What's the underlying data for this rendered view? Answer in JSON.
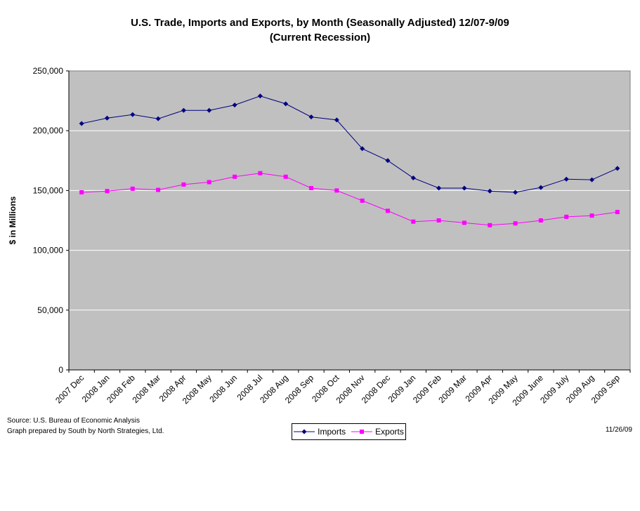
{
  "chart_data": {
    "type": "line",
    "title": "U.S. Trade, Imports and Exports, by Month (Seasonally Adjusted) 12/07-9/09",
    "subtitle": "(Current Recession)",
    "ylabel": "$ in Millions",
    "xlabel": "",
    "ylim": [
      0,
      250000
    ],
    "yticks": [
      0,
      50000,
      100000,
      150000,
      200000,
      250000
    ],
    "ytick_labels": [
      "0",
      "50,000",
      "100,000",
      "150,000",
      "200,000",
      "250,000"
    ],
    "grid": true,
    "legend_position": "bottom-center",
    "categories": [
      "2007 Dec",
      "2008 Jan",
      "2008 Feb",
      "2008 Mar",
      "2008 Apr",
      "2008 May",
      "2008 Jun",
      "2008 Jul",
      "2008 Aug",
      "2008 Sep",
      "2008 Oct",
      "2008 Nov",
      "2008 Dec",
      "2009 Jan",
      "2009 Feb",
      "2009 Mar",
      "2009 Apr",
      "2009 May",
      "2009 June",
      "2009 July",
      "2009 Aug",
      "2009 Sep"
    ],
    "series": [
      {
        "name": "Imports",
        "color": "#000080",
        "marker": "diamond",
        "values": [
          206000,
          210500,
          213500,
          210000,
          217000,
          217000,
          221500,
          229000,
          222500,
          211500,
          209000,
          185000,
          175000,
          160500,
          152000,
          152000,
          149500,
          148500,
          152500,
          159500,
          159000,
          168500
        ]
      },
      {
        "name": "Exports",
        "color": "#FF00FF",
        "marker": "square",
        "values": [
          148500,
          149500,
          151500,
          150500,
          155000,
          157000,
          161500,
          164500,
          161500,
          152000,
          150000,
          141500,
          133000,
          124000,
          125000,
          123000,
          121000,
          122500,
          125000,
          128000,
          129000,
          132000
        ]
      }
    ],
    "plot_background": "#C0C0C0",
    "source_lines": [
      "Source: U.S. Bureau of Economic Analysis",
      "Graph prepared by South by North Strategies, Ltd."
    ],
    "date_note": "11/26/09"
  }
}
